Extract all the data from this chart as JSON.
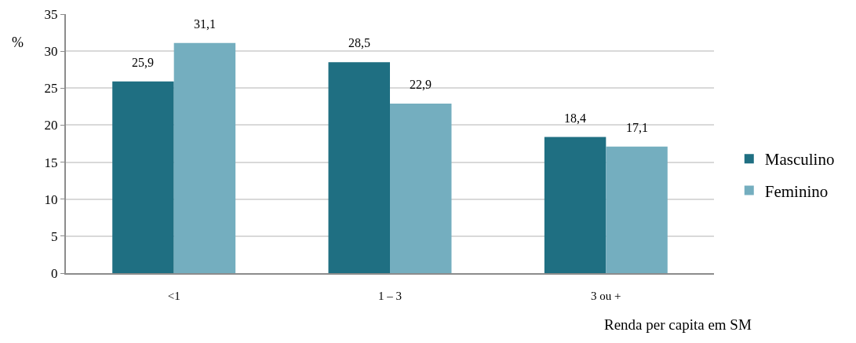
{
  "chart_data": {
    "type": "bar",
    "categories": [
      "<1",
      "1 – 3",
      "3 ou +"
    ],
    "series": [
      {
        "name": "Masculino",
        "color": "#1f6f82",
        "values": [
          25.9,
          28.5,
          18.4
        ],
        "value_labels": [
          "25,9",
          "28,5",
          "18,4"
        ]
      },
      {
        "name": "Feminino",
        "color": "#74aebf",
        "values": [
          31.1,
          22.9,
          17.1
        ],
        "value_labels": [
          "31,1",
          "22,9",
          "17,1"
        ]
      }
    ],
    "xlabel": "Renda per capita em SM",
    "ylabel": "%",
    "ylim": [
      0,
      35
    ],
    "yticks": [
      0,
      5,
      10,
      15,
      20,
      25,
      30,
      35
    ],
    "grid": "y",
    "legend": "right"
  }
}
